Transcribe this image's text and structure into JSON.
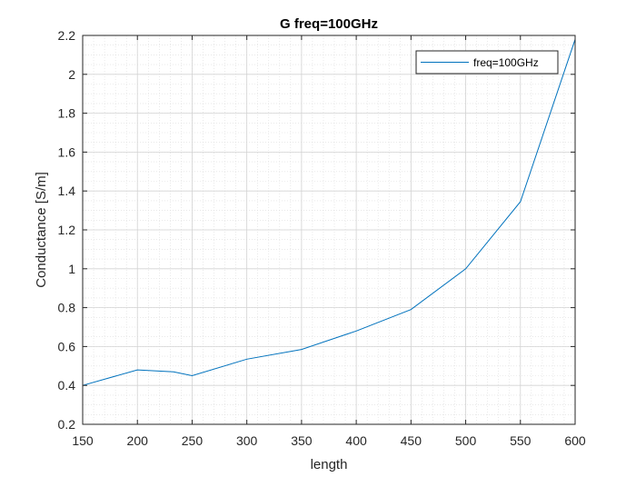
{
  "chart_data": {
    "type": "line",
    "title": "G freq=100GHz",
    "xlabel": "length",
    "ylabel": "Conductance [S/m]",
    "xlim": [
      150,
      600
    ],
    "ylim": [
      0.2,
      2.2
    ],
    "xticks": [
      150,
      200,
      250,
      300,
      350,
      400,
      450,
      500,
      550,
      600
    ],
    "yticks": [
      0.2,
      0.4,
      0.6,
      0.8,
      1,
      1.2,
      1.4,
      1.6,
      1.8,
      2,
      2.2
    ],
    "xtick_labels": [
      "150",
      "200",
      "250",
      "300",
      "350",
      "400",
      "450",
      "500",
      "550",
      "600"
    ],
    "ytick_labels": [
      "0.2",
      "0.4",
      "0.6",
      "0.8",
      "1",
      "1.2",
      "1.4",
      "1.6",
      "1.8",
      "2",
      "2.2"
    ],
    "grid": true,
    "minor_grid": true,
    "legend_position": "top-right",
    "series": [
      {
        "name": "freq=100GHz",
        "color": "#0072BD",
        "x": [
          150,
          200,
          233,
          250,
          300,
          350,
          400,
          450,
          500,
          550,
          600
        ],
        "y": [
          0.4,
          0.48,
          0.47,
          0.45,
          0.535,
          0.585,
          0.68,
          0.79,
          1.0,
          1.345,
          2.18
        ]
      }
    ]
  }
}
